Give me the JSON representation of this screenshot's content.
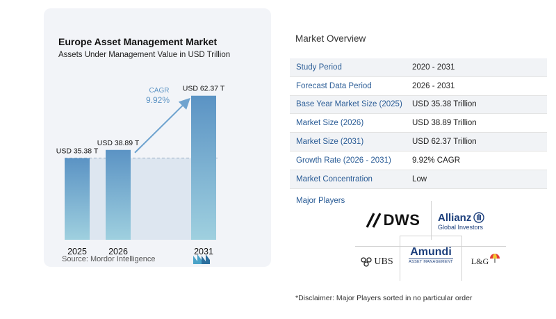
{
  "chart_data": {
    "type": "bar",
    "title": "Europe Asset Management Market",
    "subtitle": "Assets Under Management Value in USD Trillion",
    "categories": [
      "2025",
      "2026",
      "2031"
    ],
    "values": [
      35.38,
      38.89,
      62.37
    ],
    "value_labels": [
      "USD 35.38 T",
      "USD 38.89 T",
      "USD 62.37 T"
    ],
    "cagr_label": "CAGR",
    "cagr_value": "9.92%",
    "ylim": [
      0,
      65
    ],
    "grid": false,
    "colors": {
      "bar_top": "#5b93c4",
      "bar_bottom": "#9fd0df",
      "band": "#dde6f0",
      "arrow": "#6fa3cf",
      "cagr_text": "#5b93c4"
    }
  },
  "source": "Source:  Mordor Intelligence",
  "overview": {
    "title": "Market Overview",
    "rows": [
      {
        "key": "Study Period",
        "value": "2020 - 2031"
      },
      {
        "key": "Forecast Data Period",
        "value": "2026 - 2031"
      },
      {
        "key": "Base Year Market Size (2025)",
        "value": "USD 35.38 Trillion"
      },
      {
        "key": "Market Size (2026)",
        "value": "USD 38.89 Trillion"
      },
      {
        "key": "Market Size (2031)",
        "value": "USD 62.37 Trillion"
      },
      {
        "key": "Growth Rate (2026 - 2031)",
        "value": "9.92% CAGR"
      },
      {
        "key": "Market Concentration",
        "value": "Low"
      }
    ]
  },
  "players": {
    "label": "Major Players",
    "dws": "DWS",
    "allianz_name": "Allianz",
    "allianz_sub": "Global Investors",
    "amundi_name": "Amundi",
    "amundi_sub": "ASSET MANAGEMENT",
    "ubs": "UBS",
    "lg": "L&G"
  },
  "disclaimer": "*Disclaimer: Major Players sorted in no particular order"
}
